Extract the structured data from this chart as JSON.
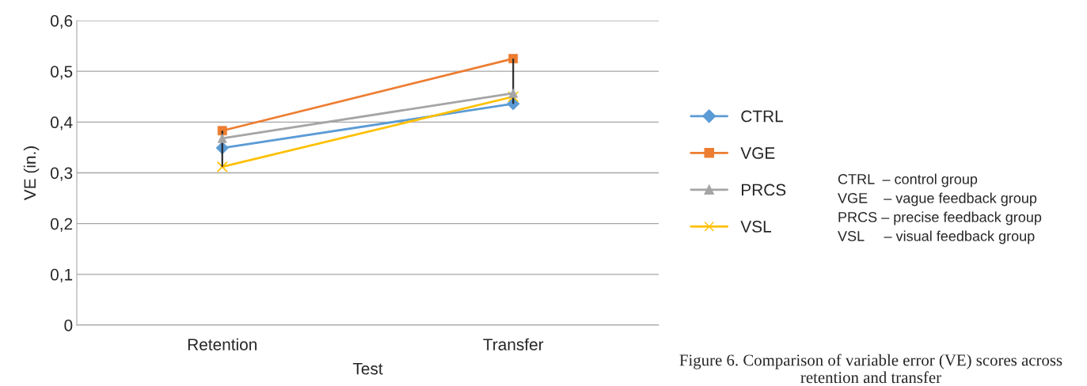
{
  "chart_data": {
    "type": "line",
    "xlabel": "Test",
    "ylabel": "VE (in.)",
    "categories": [
      "Retention",
      "Transfer"
    ],
    "series": [
      {
        "name": "CTRL",
        "color": "#5b9bd5",
        "marker": "diamond",
        "values": [
          0.349,
          0.436
        ]
      },
      {
        "name": "VGE",
        "color": "#ed7d31",
        "marker": "square",
        "values": [
          0.383,
          0.525
        ],
        "errors": [
          [
            0.312,
            0.383
          ],
          [
            0.436,
            0.525
          ]
        ]
      },
      {
        "name": "PRCS",
        "color": "#a5a5a5",
        "marker": "triangle",
        "values": [
          0.368,
          0.457
        ]
      },
      {
        "name": "VSL",
        "color": "#ffc000",
        "marker": "cross",
        "values": [
          0.312,
          0.45
        ]
      }
    ],
    "ylim": [
      0,
      0.6
    ],
    "yticks": [
      {
        "value": 0,
        "label": "0"
      },
      {
        "value": 0.1,
        "label": "0,1"
      },
      {
        "value": 0.2,
        "label": "0,2"
      },
      {
        "value": 0.3,
        "label": "0,3"
      },
      {
        "value": 0.4,
        "label": "0,4"
      },
      {
        "value": 0.5,
        "label": "0,5"
      },
      {
        "value": 0.6,
        "label": "0,6"
      }
    ],
    "grid": "y",
    "legend": "right",
    "line_style": "solid",
    "annotations": [
      "CTRL  – control group",
      "VGE    – vague feedback group",
      "PRCS – precise feedback group",
      "VSL     – visual feedback group",
      "Figure 6. Comparison of variable error (VE) scores across retention and transfer"
    ]
  }
}
